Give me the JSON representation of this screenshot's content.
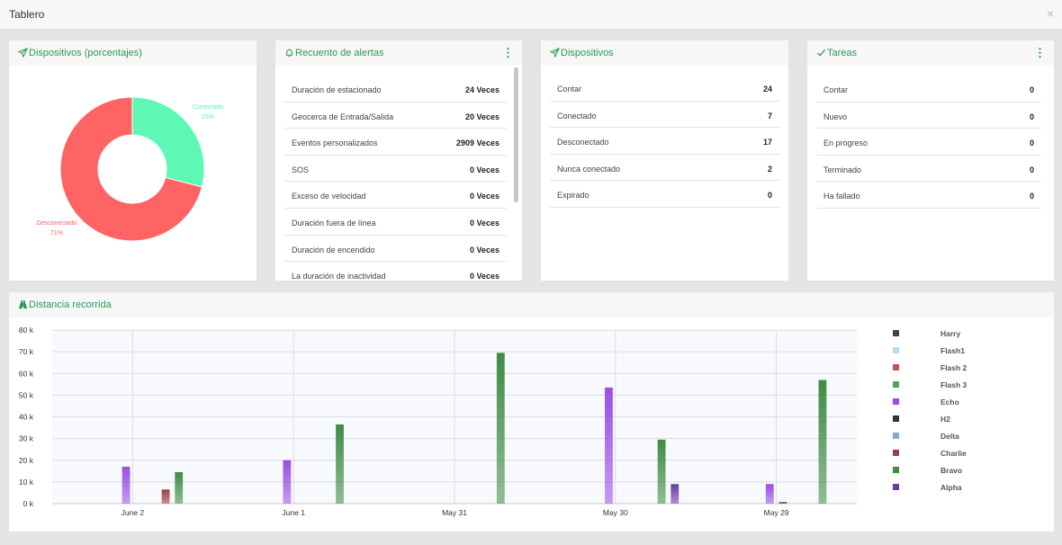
{
  "window": {
    "title": "Tablero",
    "close_symbol": "×"
  },
  "panels": {
    "devices_pct": {
      "title": "Dispositivos (porcentajes)",
      "slices": [
        {
          "label": "Conectado",
          "percent_label": "29%",
          "value": 29,
          "color": "#5cf8b4"
        },
        {
          "label": "Desconectado",
          "percent_label": "71%",
          "value": 71,
          "color": "#ff6464"
        }
      ]
    },
    "alerts": {
      "title": "Recuento de alertas",
      "rows": [
        {
          "label": "Duración de estacionado",
          "value": "24 Veces"
        },
        {
          "label": "Geocerca de Entrada/Salida",
          "value": "20 Veces"
        },
        {
          "label": "Eventos personalizados",
          "value": "2909 Veces"
        },
        {
          "label": "SOS",
          "value": "0 Veces"
        },
        {
          "label": "Exceso de velocidad",
          "value": "0 Veces"
        },
        {
          "label": "Duración fuera de línea",
          "value": "0 Veces"
        },
        {
          "label": "Duración de encendido",
          "value": "0 Veces"
        },
        {
          "label": "La duración de inactividad",
          "value": "0 Veces"
        }
      ]
    },
    "devices": {
      "title": "Dispositivos",
      "rows": [
        {
          "label": "Contar",
          "value": "24"
        },
        {
          "label": "Conectado",
          "value": "7"
        },
        {
          "label": "Desconectado",
          "value": "17"
        },
        {
          "label": "Nunca conectado",
          "value": "2"
        },
        {
          "label": "Expirado",
          "value": "0"
        }
      ]
    },
    "tasks": {
      "title": "Tareas",
      "rows": [
        {
          "label": "Contar",
          "value": "0"
        },
        {
          "label": "Nuevo",
          "value": "0"
        },
        {
          "label": "En progreso",
          "value": "0"
        },
        {
          "label": "Terminado",
          "value": "0"
        },
        {
          "label": "Ha fallado",
          "value": "0"
        }
      ]
    },
    "distance": {
      "title": "Distancia recorrida"
    }
  },
  "chart_data": {
    "type": "bar",
    "ylim": [
      0,
      80000
    ],
    "y_ticks": [
      {
        "value": 0,
        "label": "0 k"
      },
      {
        "value": 10000,
        "label": "10 k"
      },
      {
        "value": 20000,
        "label": "20 k"
      },
      {
        "value": 30000,
        "label": "30 k"
      },
      {
        "value": 40000,
        "label": "40 k"
      },
      {
        "value": 50000,
        "label": "50 k"
      },
      {
        "value": 60000,
        "label": "60 k"
      },
      {
        "value": 70000,
        "label": "70 k"
      },
      {
        "value": 80000,
        "label": "80 k"
      }
    ],
    "categories": [
      "June 2",
      "June 1",
      "May 31",
      "May 30",
      "May 29"
    ],
    "series": [
      {
        "name": "Harry",
        "color": "#434348",
        "values": [
          0,
          0,
          0,
          0,
          0
        ]
      },
      {
        "name": "Flash1",
        "color": "#b3dcf2",
        "values": [
          0,
          0,
          0,
          0,
          0
        ]
      },
      {
        "name": "Flash 2",
        "color": "#c8505a",
        "values": [
          0,
          0,
          0,
          0,
          0
        ]
      },
      {
        "name": "Flash 3",
        "color": "#4aa84a",
        "values": [
          0,
          0,
          0,
          0,
          0
        ]
      },
      {
        "name": "Echo",
        "color": "#9a4ee8",
        "values": [
          17000,
          20000,
          0,
          53500,
          9000
        ]
      },
      {
        "name": "H2",
        "color": "#333333",
        "values": [
          0,
          0,
          0,
          0,
          700
        ]
      },
      {
        "name": "Delta",
        "color": "#8aa8c8",
        "values": [
          0,
          0,
          0,
          0,
          0
        ]
      },
      {
        "name": "Charlie",
        "color": "#a03c46",
        "values": [
          6500,
          0,
          0,
          0,
          0
        ]
      },
      {
        "name": "Bravo",
        "color": "#3e8c44",
        "values": [
          14500,
          36500,
          69500,
          29500,
          57000
        ]
      },
      {
        "name": "Alpha",
        "color": "#6a3aa8",
        "values": [
          0,
          0,
          0,
          9000,
          0
        ]
      }
    ],
    "grid": true,
    "legend": "right"
  }
}
